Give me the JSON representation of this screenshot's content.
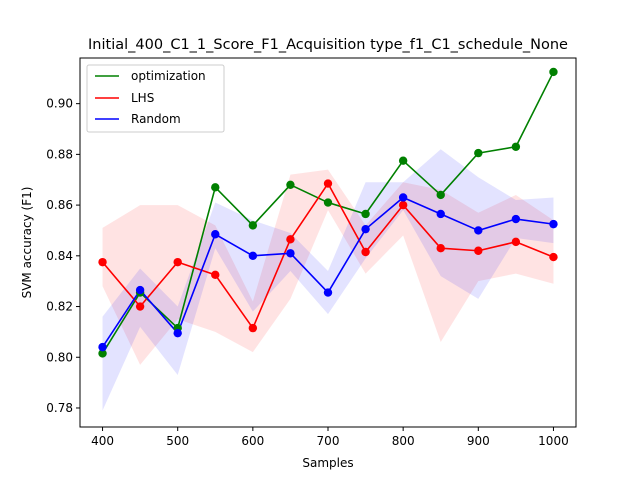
{
  "chart_data": {
    "type": "line",
    "title": "Initial_400_C1_1_Score_F1_Acquisition type_f1_C1_schedule_None",
    "xlabel": "Samples",
    "ylabel": "SVM accuracy (F1)",
    "xlim": [
      370,
      1030
    ],
    "ylim": [
      0.7725,
      0.918
    ],
    "x": [
      400,
      450,
      500,
      550,
      600,
      650,
      700,
      750,
      800,
      850,
      900,
      950,
      1000
    ],
    "xticks": [
      400,
      500,
      600,
      700,
      800,
      900,
      1000
    ],
    "xtick_labels": [
      "400",
      "500",
      "600",
      "700",
      "800",
      "900",
      "1000"
    ],
    "yticks": [
      0.78,
      0.8,
      0.82,
      0.84,
      0.86,
      0.88,
      0.9
    ],
    "ytick_labels": [
      "0.78",
      "0.80",
      "0.82",
      "0.84",
      "0.86",
      "0.88",
      "0.90"
    ],
    "grid": false,
    "legend_position": "upper-left",
    "series": [
      {
        "name": "optimization",
        "color": "#008000",
        "values": [
          0.8015,
          0.8255,
          0.8115,
          0.867,
          0.852,
          0.868,
          0.861,
          0.8565,
          0.8775,
          0.864,
          0.8805,
          0.883,
          0.9125
        ]
      },
      {
        "name": "LHS",
        "color": "#ff0000",
        "band_opacity": 0.11,
        "values": [
          0.8375,
          0.82,
          0.8375,
          0.8325,
          0.8115,
          0.8465,
          0.8685,
          0.8415,
          0.86,
          0.843,
          0.842,
          0.8455,
          0.8395
        ],
        "lower": [
          0.828,
          0.797,
          0.815,
          0.81,
          0.802,
          0.823,
          0.858,
          0.833,
          0.848,
          0.806,
          0.83,
          0.833,
          0.829
        ],
        "upper": [
          0.851,
          0.86,
          0.86,
          0.852,
          0.822,
          0.872,
          0.874,
          0.852,
          0.869,
          0.866,
          0.857,
          0.864,
          0.854
        ]
      },
      {
        "name": "Random",
        "color": "#0000ff",
        "band_opacity": 0.11,
        "values": [
          0.804,
          0.8265,
          0.8095,
          0.8485,
          0.84,
          0.841,
          0.8255,
          0.8505,
          0.863,
          0.8565,
          0.85,
          0.8545,
          0.8525
        ],
        "lower": [
          0.779,
          0.812,
          0.793,
          0.843,
          0.818,
          0.834,
          0.817,
          0.839,
          0.858,
          0.832,
          0.823,
          0.847,
          0.845
        ],
        "upper": [
          0.816,
          0.835,
          0.82,
          0.861,
          0.854,
          0.849,
          0.834,
          0.869,
          0.869,
          0.882,
          0.871,
          0.862,
          0.863
        ]
      }
    ]
  }
}
